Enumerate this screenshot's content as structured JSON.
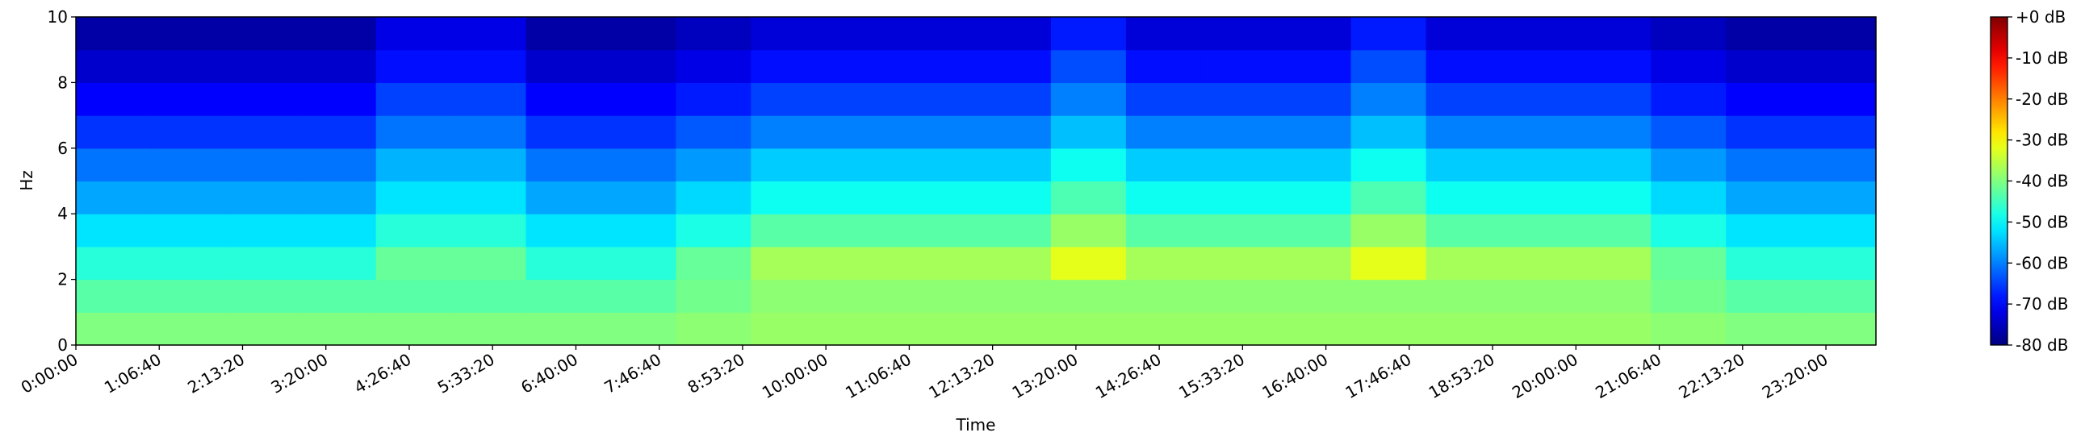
{
  "chart_data": {
    "type": "heatmap",
    "colormap": "jet",
    "xlabel": "Time",
    "ylabel": "Hz",
    "xlim": [
      0,
      86400
    ],
    "ylim": [
      0,
      10
    ],
    "xticks": [
      {
        "value": 0,
        "label": "0:00:00"
      },
      {
        "value": 4000,
        "label": "1:06:40"
      },
      {
        "value": 8000,
        "label": "2:13:20"
      },
      {
        "value": 12000,
        "label": "3:20:00"
      },
      {
        "value": 16000,
        "label": "4:26:40"
      },
      {
        "value": 20000,
        "label": "5:33:20"
      },
      {
        "value": 24000,
        "label": "6:40:00"
      },
      {
        "value": 28000,
        "label": "7:46:40"
      },
      {
        "value": 32000,
        "label": "8:53:20"
      },
      {
        "value": 36000,
        "label": "10:00:00"
      },
      {
        "value": 40000,
        "label": "11:06:40"
      },
      {
        "value": 44000,
        "label": "12:13:20"
      },
      {
        "value": 48000,
        "label": "13:20:00"
      },
      {
        "value": 52000,
        "label": "14:26:40"
      },
      {
        "value": 56000,
        "label": "15:33:20"
      },
      {
        "value": 60000,
        "label": "16:40:00"
      },
      {
        "value": 64000,
        "label": "17:46:40"
      },
      {
        "value": 68000,
        "label": "18:53:20"
      },
      {
        "value": 72000,
        "label": "20:00:00"
      },
      {
        "value": 76000,
        "label": "21:06:40"
      },
      {
        "value": 80000,
        "label": "22:13:20"
      },
      {
        "value": 84000,
        "label": "23:20:00"
      }
    ],
    "yticks": [
      0,
      2,
      4,
      6,
      8,
      10
    ],
    "zlim": [
      -80,
      0
    ],
    "zticks": [
      {
        "value": 0,
        "label": "+0 dB"
      },
      {
        "value": -10,
        "label": "-10 dB"
      },
      {
        "value": -20,
        "label": "-20 dB"
      },
      {
        "value": -30,
        "label": "-30 dB"
      },
      {
        "value": -40,
        "label": "-40 dB"
      },
      {
        "value": -50,
        "label": "-50 dB"
      },
      {
        "value": -60,
        "label": "-60 dB"
      },
      {
        "value": -70,
        "label": "-70 dB"
      },
      {
        "value": -80,
        "label": "-80 dB"
      }
    ],
    "xbins": [
      0,
      3600,
      7200,
      10800,
      14400,
      18000,
      21600,
      25200,
      28800,
      32400,
      36000,
      39600,
      43200,
      46800,
      50400,
      54000,
      57600,
      61200,
      64800,
      68400,
      72000,
      75600,
      79200,
      82800,
      86400
    ],
    "ybins": [
      0,
      1,
      2,
      3,
      4,
      5,
      6,
      7,
      8,
      9,
      10
    ],
    "z": [
      [
        -40,
        -40,
        -40,
        -40,
        -40,
        -40,
        -40,
        -40,
        -39,
        -38,
        -38,
        -38,
        -38,
        -38,
        -38,
        -38,
        -38,
        -38,
        -38,
        -38,
        -38,
        -39,
        -40,
        -40
      ],
      [
        -43,
        -43,
        -43,
        -43,
        -43,
        -43,
        -43,
        -43,
        -41,
        -39,
        -39,
        -39,
        -39,
        -39,
        -39,
        -39,
        -39,
        -39,
        -39,
        -39,
        -39,
        -41,
        -43,
        -43
      ],
      [
        -47,
        -47,
        -47,
        -47,
        -42,
        -42,
        -47,
        -47,
        -42,
        -37,
        -37,
        -37,
        -37,
        -32,
        -37,
        -37,
        -37,
        -32,
        -37,
        -37,
        -37,
        -42,
        -47,
        -47
      ],
      [
        -52,
        -52,
        -52,
        -52,
        -47,
        -47,
        -52,
        -52,
        -48,
        -43,
        -43,
        -43,
        -43,
        -38,
        -43,
        -43,
        -43,
        -38,
        -43,
        -43,
        -43,
        -48,
        -52,
        -52
      ],
      [
        -57,
        -57,
        -57,
        -57,
        -52,
        -52,
        -57,
        -57,
        -53,
        -49,
        -49,
        -49,
        -49,
        -44,
        -49,
        -49,
        -49,
        -44,
        -49,
        -49,
        -49,
        -53,
        -57,
        -57
      ],
      [
        -61,
        -61,
        -61,
        -61,
        -56,
        -56,
        -61,
        -61,
        -58,
        -54,
        -54,
        -54,
        -54,
        -49,
        -54,
        -54,
        -54,
        -49,
        -54,
        -54,
        -54,
        -58,
        -61,
        -61
      ],
      [
        -66,
        -66,
        -66,
        -66,
        -61,
        -61,
        -66,
        -66,
        -63,
        -60,
        -60,
        -60,
        -60,
        -55,
        -60,
        -60,
        -60,
        -55,
        -60,
        -60,
        -60,
        -63,
        -66,
        -66
      ],
      [
        -70,
        -70,
        -70,
        -70,
        -65,
        -65,
        -70,
        -70,
        -68,
        -65,
        -65,
        -65,
        -65,
        -60,
        -65,
        -65,
        -65,
        -60,
        -65,
        -65,
        -65,
        -68,
        -70,
        -70
      ],
      [
        -74,
        -74,
        -74,
        -74,
        -69,
        -69,
        -74,
        -74,
        -72,
        -69,
        -69,
        -69,
        -69,
        -64,
        -69,
        -69,
        -69,
        -64,
        -69,
        -69,
        -69,
        -72,
        -74,
        -74
      ],
      [
        -77,
        -77,
        -77,
        -77,
        -72,
        -72,
        -77,
        -77,
        -75,
        -73,
        -73,
        -73,
        -73,
        -68,
        -73,
        -73,
        -73,
        -68,
        -73,
        -73,
        -73,
        -75,
        -77,
        -77
      ]
    ]
  }
}
